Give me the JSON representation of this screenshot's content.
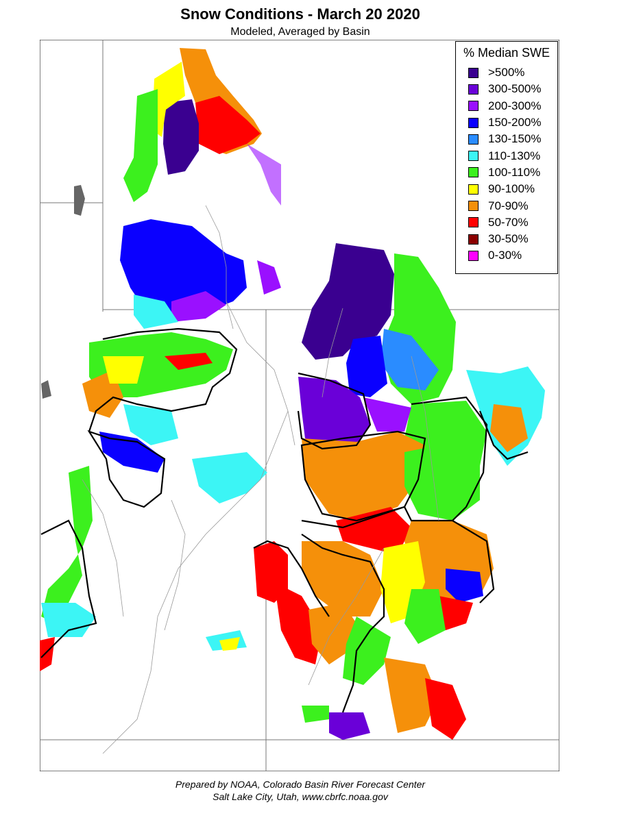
{
  "title": "Snow Conditions - March 20 2020",
  "subtitle": "Modeled, Averaged by Basin",
  "legend": {
    "title": "% Median SWE",
    "items": [
      {
        "label": ">500%",
        "color": "#3a0090"
      },
      {
        "label": "300-500%",
        "color": "#6a00d8"
      },
      {
        "label": "200-300%",
        "color": "#9a10ff"
      },
      {
        "label": "150-200%",
        "color": "#0a00ff"
      },
      {
        "label": "130-150%",
        "color": "#2a8cff"
      },
      {
        "label": "110-130%",
        "color": "#3cf5f5"
      },
      {
        "label": "100-110%",
        "color": "#3cf01e"
      },
      {
        "label": "90-100%",
        "color": "#ffff00"
      },
      {
        "label": "70-90%",
        "color": "#f5900a"
      },
      {
        "label": "50-70%",
        "color": "#ff0000"
      },
      {
        "label": "30-50%",
        "color": "#8b0000"
      },
      {
        "label": "0-30%",
        "color": "#ff00ff"
      }
    ]
  },
  "footer": {
    "line1": "Prepared by NOAA, Colorado Basin River Forecast Center",
    "line2": "Salt Lake City, Utah, www.cbrfc.noaa.gov"
  }
}
